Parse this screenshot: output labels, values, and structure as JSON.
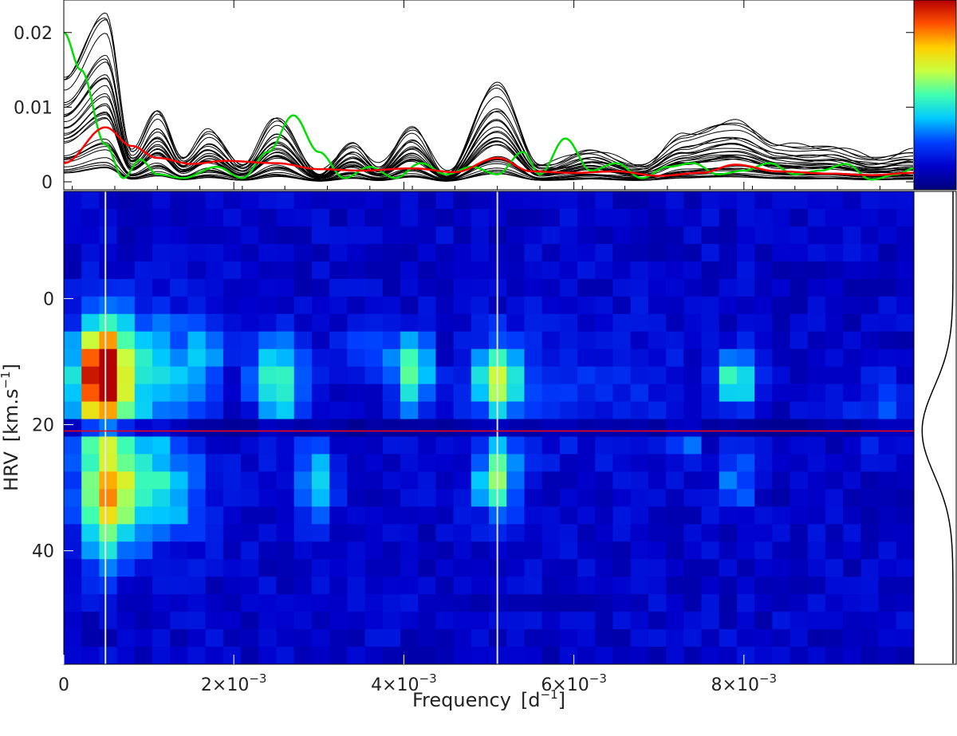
{
  "chart_data": [
    {
      "type": "line",
      "panel": "periodogram",
      "xlim": [
        0,
        0.01
      ],
      "ylim": [
        0,
        0.0235
      ],
      "y_ticks": [
        0,
        0.01,
        0.02
      ],
      "y_tick_labels": [
        "0",
        "0.01",
        "0.02"
      ],
      "series_style": [
        {
          "color": "#000000",
          "count": 32,
          "role": "individual velocity-bin periodograms"
        },
        {
          "color": "#ff0000",
          "role": "mean periodogram"
        },
        {
          "color": "#00dd00",
          "role": "comparison periodogram"
        }
      ],
      "peaks_x": [
        0.00049,
        0.0011,
        0.0017,
        0.0025,
        0.0034,
        0.0041,
        0.0051,
        0.0079
      ],
      "black_envelope": {
        "x": [
          0.0,
          0.00049,
          0.0008,
          0.0011,
          0.0014,
          0.0017,
          0.0021,
          0.0025,
          0.003,
          0.0034,
          0.0037,
          0.0041,
          0.0045,
          0.0051,
          0.0056,
          0.0062,
          0.0068,
          0.0073,
          0.0079,
          0.0084,
          0.009,
          0.0096,
          0.01
        ],
        "y": [
          0.014,
          0.0227,
          0.004,
          0.0095,
          0.003,
          0.0068,
          0.002,
          0.0085,
          0.001,
          0.005,
          0.002,
          0.0072,
          0.001,
          0.0132,
          0.002,
          0.004,
          0.002,
          0.0062,
          0.008,
          0.0048,
          0.0045,
          0.003,
          0.004
        ]
      },
      "red_series": {
        "x": [
          0.0,
          0.00049,
          0.0008,
          0.0011,
          0.0015,
          0.0019,
          0.0025,
          0.003,
          0.0035,
          0.0041,
          0.0046,
          0.0051,
          0.0055,
          0.006,
          0.0065,
          0.007,
          0.0075,
          0.0079,
          0.0084,
          0.009,
          0.0095,
          0.01
        ],
        "y": [
          0.0025,
          0.0073,
          0.0048,
          0.0032,
          0.0024,
          0.0028,
          0.0025,
          0.0017,
          0.0015,
          0.0018,
          0.0013,
          0.0032,
          0.0014,
          0.0012,
          0.0014,
          0.0008,
          0.0012,
          0.0023,
          0.0014,
          0.0011,
          0.0009,
          0.0012
        ]
      },
      "green_series": {
        "x": [
          0.0,
          0.0002,
          0.00049,
          0.0007,
          0.0009,
          0.0011,
          0.0014,
          0.0018,
          0.0021,
          0.0024,
          0.0027,
          0.003,
          0.0033,
          0.0036,
          0.0039,
          0.0042,
          0.0045,
          0.0048,
          0.0051,
          0.0054,
          0.0056,
          0.0059,
          0.0062,
          0.0065,
          0.0068,
          0.0071,
          0.0074,
          0.0077,
          0.008,
          0.0083,
          0.0086,
          0.0089,
          0.0092,
          0.0095,
          0.0098,
          0.01
        ],
        "y": [
          0.02,
          0.015,
          0.005,
          0.0005,
          0.003,
          0.001,
          0.0005,
          0.002,
          0.0005,
          0.004,
          0.0089,
          0.004,
          0.0005,
          0.002,
          0.0005,
          0.0025,
          0.001,
          0.002,
          0.001,
          0.004,
          0.001,
          0.0058,
          0.0015,
          0.0025,
          0.0005,
          0.002,
          0.0025,
          0.001,
          0.0015,
          0.0025,
          0.001,
          0.0015,
          0.0024,
          0.0003,
          0.001,
          0.0018
        ]
      }
    },
    {
      "type": "heatmap",
      "panel": "frequency-velocity map",
      "xlabel": "Frequency",
      "xlabel_unit": "[d",
      "xlabel_unit_sup": "−1",
      "xlabel_unit_end": "]",
      "ylabel": "HRV",
      "ylabel_unit": "[km.s",
      "ylabel_unit_sup": "−1",
      "ylabel_unit_end": "]",
      "xlim": [
        0,
        0.01
      ],
      "ylim": [
        58,
        -17
      ],
      "x_ticks": [
        0,
        0.002,
        0.004,
        0.006,
        0.008
      ],
      "x_tick_labels": [
        {
          "mant": "0",
          "exp": ""
        },
        {
          "mant": "2×10",
          "exp": "−3"
        },
        {
          "mant": "4×10",
          "exp": "−3"
        },
        {
          "mant": "6×10",
          "exp": "−3"
        },
        {
          "mant": "8×10",
          "exp": "−3"
        }
      ],
      "y_ticks": [
        0,
        20,
        40
      ],
      "y_tick_labels": [
        "0",
        "20",
        "40"
      ],
      "colormap": [
        "#00007a",
        "#0000cc",
        "#0040ff",
        "#00c8ff",
        "#40ffb0",
        "#c8ff40",
        "#ffd000",
        "#ff5000",
        "#b40000"
      ],
      "background_level": 0.12,
      "blobs": [
        {
          "x": 0.00045,
          "y": 12,
          "sx": 0.00022,
          "sy": 6,
          "amp": 0.95
        },
        {
          "x": 0.0005,
          "y": 31,
          "sx": 0.00022,
          "sy": 7,
          "amp": 0.58
        },
        {
          "x": 0.0011,
          "y": 11,
          "sx": 0.0003,
          "sy": 6,
          "amp": 0.3
        },
        {
          "x": 0.0011,
          "y": 30,
          "sx": 0.00035,
          "sy": 6,
          "amp": 0.33
        },
        {
          "x": 0.00165,
          "y": 10,
          "sx": 0.00015,
          "sy": 4,
          "amp": 0.22
        },
        {
          "x": 0.0025,
          "y": 13,
          "sx": 0.0002,
          "sy": 5,
          "amp": 0.4
        },
        {
          "x": 0.00295,
          "y": 29,
          "sx": 0.00015,
          "sy": 4,
          "amp": 0.3
        },
        {
          "x": 0.0041,
          "y": 12,
          "sx": 0.00015,
          "sy": 4,
          "amp": 0.42
        },
        {
          "x": 0.0051,
          "y": 13,
          "sx": 0.00017,
          "sy": 4,
          "amp": 0.52
        },
        {
          "x": 0.0051,
          "y": 29,
          "sx": 0.00017,
          "sy": 4,
          "amp": 0.45
        },
        {
          "x": 0.0079,
          "y": 13,
          "sx": 0.00017,
          "sy": 3,
          "amp": 0.42
        },
        {
          "x": 0.0079,
          "y": 29,
          "sx": 0.00015,
          "sy": 3,
          "amp": 0.22
        },
        {
          "x": 0.0073,
          "y": 22,
          "sx": 0.00012,
          "sy": 2,
          "amp": 0.25
        },
        {
          "x": 0.0036,
          "y": 8,
          "sx": 0.0003,
          "sy": 3,
          "amp": 0.12
        },
        {
          "x": 0.006,
          "y": 14,
          "sx": 0.0008,
          "sy": 8,
          "amp": 0.08
        },
        {
          "x": 0.0097,
          "y": 18,
          "sx": 0.0003,
          "sy": 4,
          "amp": 0.12
        }
      ],
      "vertical_markers_x": [
        0.00049,
        0.0051
      ],
      "vertical_marker_color": "#e6e6e6",
      "horizontal_marker_y": 21,
      "horizontal_marker_color": "#ff0000"
    },
    {
      "type": "line",
      "panel": "line profile",
      "shape": "absorption profile",
      "center_y": 21,
      "width": 7,
      "depth": 0.88,
      "color": "#000000"
    }
  ]
}
